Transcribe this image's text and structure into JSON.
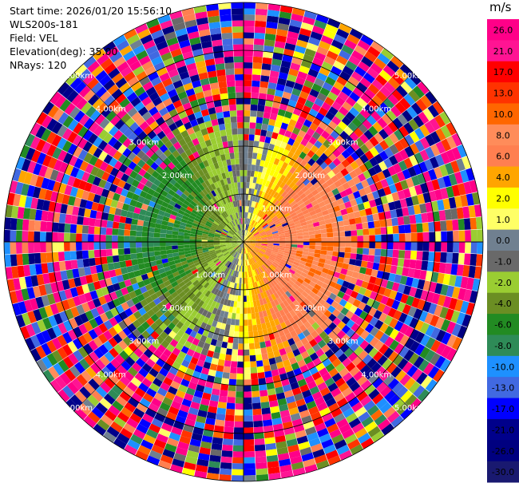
{
  "info": {
    "start_time": "Start time: 2026/01/20 15:56:10",
    "instrument": "WLS200s-181",
    "field": "Field: VEL",
    "elevation": "Elevation(deg): 35.00",
    "nrays": "NRays: 120"
  },
  "chart_data": {
    "type": "heatmap",
    "projection": "polar-ppi",
    "field": "VEL",
    "units": "m/s",
    "nrays": 120,
    "elevation_deg": 35.0,
    "max_range_km": 5.0,
    "range_gates": 40,
    "ring_labels": [
      "1.00km",
      "2.00km",
      "3.00km",
      "4.00km",
      "5.00km"
    ],
    "colorbar": {
      "units": "m/s",
      "ticks": [
        "26.0",
        "21.0",
        "17.0",
        "13.0",
        "10.0",
        "8.0",
        "6.0",
        "4.0",
        "2.0",
        "1.0",
        "0.0",
        "-1.0",
        "-2.0",
        "-4.0",
        "-6.0",
        "-8.0",
        "-10.0",
        "-13.0",
        "-17.0",
        "-21.0",
        "-26.0",
        "-30.0"
      ],
      "colors": [
        "#ff0088",
        "#ff1493",
        "#ff0000",
        "#ff3300",
        "#ff6600",
        "#ff8c5a",
        "#ff7f50",
        "#ffa500",
        "#ffff00",
        "#ffff66",
        "#708090",
        "#696969",
        "#9acd32",
        "#6b8e23",
        "#228b22",
        "#2e8b57",
        "#1e90ff",
        "#4169e1",
        "#0000ff",
        "#00008b",
        "#000080",
        "#191970"
      ]
    },
    "wind_model": {
      "max_velocity": 8.0,
      "clean_range_km": 2.0,
      "noise_range_km": 3.0
    }
  }
}
